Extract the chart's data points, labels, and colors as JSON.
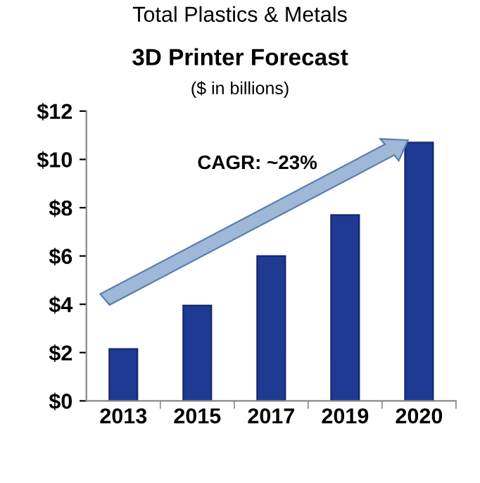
{
  "chart_data": {
    "type": "bar",
    "title": "3D Printer Forecast",
    "subtitle": "($ in billions)",
    "annotations": [
      "Total Plastics & Metals",
      "CAGR: ~23%"
    ],
    "categories": [
      "2013",
      "2015",
      "2017",
      "2019",
      "2020"
    ],
    "values": [
      2.15,
      3.95,
      6.0,
      7.7,
      10.7
    ],
    "color": "#1f3a93",
    "ylim": [
      0,
      12
    ],
    "yticks": [
      {
        "value": 0,
        "label": "$0"
      },
      {
        "value": 2,
        "label": "$2"
      },
      {
        "value": 4,
        "label": "$4"
      },
      {
        "value": 6,
        "label": "$6"
      },
      {
        "value": 8,
        "label": "$8"
      },
      {
        "value": 10,
        "label": "$10"
      },
      {
        "value": 12,
        "label": "$12"
      }
    ],
    "grid": false,
    "legend": false
  }
}
